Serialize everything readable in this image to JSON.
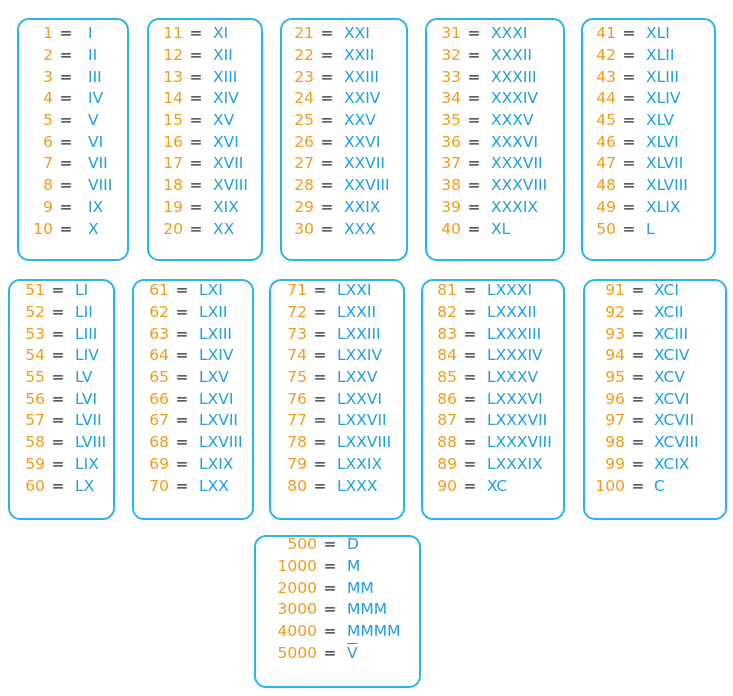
{
  "equals_sign": "=",
  "colors": {
    "number": "#f49a16",
    "numeral": "#1e9fdf",
    "border": "#2ab4ec",
    "equals": "#1c2733"
  },
  "groups": [
    {
      "rows": [
        {
          "n": "1",
          "r": "I"
        },
        {
          "n": "2",
          "r": "II"
        },
        {
          "n": "3",
          "r": "III"
        },
        {
          "n": "4",
          "r": "IV"
        },
        {
          "n": "5",
          "r": "V"
        },
        {
          "n": "6",
          "r": "VI"
        },
        {
          "n": "7",
          "r": "VII"
        },
        {
          "n": "8",
          "r": "VIII"
        },
        {
          "n": "9",
          "r": "IX"
        },
        {
          "n": "10",
          "r": "X"
        }
      ]
    },
    {
      "rows": [
        {
          "n": "11",
          "r": "XI"
        },
        {
          "n": "12",
          "r": "XII"
        },
        {
          "n": "13",
          "r": "XIII"
        },
        {
          "n": "14",
          "r": "XIV"
        },
        {
          "n": "15",
          "r": "XV"
        },
        {
          "n": "16",
          "r": "XVI"
        },
        {
          "n": "17",
          "r": "XVII"
        },
        {
          "n": "18",
          "r": "XVIII"
        },
        {
          "n": "19",
          "r": "XIX"
        },
        {
          "n": "20",
          "r": "XX"
        }
      ]
    },
    {
      "rows": [
        {
          "n": "21",
          "r": "XXI"
        },
        {
          "n": "22",
          "r": "XXII"
        },
        {
          "n": "23",
          "r": "XXIII"
        },
        {
          "n": "24",
          "r": "XXIV"
        },
        {
          "n": "25",
          "r": "XXV"
        },
        {
          "n": "26",
          "r": "XXVI"
        },
        {
          "n": "27",
          "r": "XXVII"
        },
        {
          "n": "28",
          "r": "XXVIII"
        },
        {
          "n": "29",
          "r": "XXIX"
        },
        {
          "n": "30",
          "r": "XXX"
        }
      ]
    },
    {
      "rows": [
        {
          "n": "31",
          "r": "XXXI"
        },
        {
          "n": "32",
          "r": "XXXII"
        },
        {
          "n": "33",
          "r": "XXXIII"
        },
        {
          "n": "34",
          "r": "XXXIV"
        },
        {
          "n": "35",
          "r": "XXXV"
        },
        {
          "n": "36",
          "r": "XXXVI"
        },
        {
          "n": "37",
          "r": "XXXVII"
        },
        {
          "n": "38",
          "r": "XXXVIII"
        },
        {
          "n": "39",
          "r": "XXXIX"
        },
        {
          "n": "40",
          "r": "XL"
        }
      ]
    },
    {
      "rows": [
        {
          "n": "41",
          "r": "XLI"
        },
        {
          "n": "42",
          "r": "XLII"
        },
        {
          "n": "43",
          "r": "XLIII"
        },
        {
          "n": "44",
          "r": "XLIV"
        },
        {
          "n": "45",
          "r": "XLV"
        },
        {
          "n": "46",
          "r": "XLVI"
        },
        {
          "n": "47",
          "r": "XLVII"
        },
        {
          "n": "48",
          "r": "XLVIII"
        },
        {
          "n": "49",
          "r": "XLIX"
        },
        {
          "n": "50",
          "r": "L"
        }
      ]
    },
    {
      "rows": [
        {
          "n": "51",
          "r": "LI"
        },
        {
          "n": "52",
          "r": "LII"
        },
        {
          "n": "53",
          "r": "LIII"
        },
        {
          "n": "54",
          "r": "LIV"
        },
        {
          "n": "55",
          "r": "LV"
        },
        {
          "n": "56",
          "r": "LVI"
        },
        {
          "n": "57",
          "r": "LVII"
        },
        {
          "n": "58",
          "r": "LVIII"
        },
        {
          "n": "59",
          "r": "LIX"
        },
        {
          "n": "60",
          "r": "LX"
        }
      ]
    },
    {
      "rows": [
        {
          "n": "61",
          "r": "LXI"
        },
        {
          "n": "62",
          "r": "LXII"
        },
        {
          "n": "63",
          "r": "LXIII"
        },
        {
          "n": "64",
          "r": "LXIV"
        },
        {
          "n": "65",
          "r": "LXV"
        },
        {
          "n": "66",
          "r": "LXVI"
        },
        {
          "n": "67",
          "r": "LXVII"
        },
        {
          "n": "68",
          "r": "LXVIII"
        },
        {
          "n": "69",
          "r": "LXIX"
        },
        {
          "n": "70",
          "r": "LXX"
        }
      ]
    },
    {
      "rows": [
        {
          "n": "71",
          "r": "LXXI"
        },
        {
          "n": "72",
          "r": "LXXII"
        },
        {
          "n": "73",
          "r": "LXXIII"
        },
        {
          "n": "74",
          "r": "LXXIV"
        },
        {
          "n": "75",
          "r": "LXXV"
        },
        {
          "n": "76",
          "r": "LXXVI"
        },
        {
          "n": "77",
          "r": "LXXVII"
        },
        {
          "n": "78",
          "r": "LXXVIII"
        },
        {
          "n": "79",
          "r": "LXXIX"
        },
        {
          "n": "80",
          "r": "LXXX"
        }
      ]
    },
    {
      "rows": [
        {
          "n": "81",
          "r": "LXXXI"
        },
        {
          "n": "82",
          "r": "LXXXII"
        },
        {
          "n": "83",
          "r": "LXXXIII"
        },
        {
          "n": "84",
          "r": "LXXXIV"
        },
        {
          "n": "85",
          "r": "LXXXV"
        },
        {
          "n": "86",
          "r": "LXXXVI"
        },
        {
          "n": "87",
          "r": "LXXXVII"
        },
        {
          "n": "88",
          "r": "LXXXVIII"
        },
        {
          "n": "89",
          "r": "LXXXIX"
        },
        {
          "n": "90",
          "r": "XC"
        }
      ]
    },
    {
      "rows": [
        {
          "n": "91",
          "r": "XCI"
        },
        {
          "n": "92",
          "r": "XCII"
        },
        {
          "n": "93",
          "r": "XCIII"
        },
        {
          "n": "94",
          "r": "XCIV"
        },
        {
          "n": "95",
          "r": "XCV"
        },
        {
          "n": "96",
          "r": "XCVI"
        },
        {
          "n": "97",
          "r": "XCVII"
        },
        {
          "n": "98",
          "r": "XCVIII"
        },
        {
          "n": "99",
          "r": "XCIX"
        },
        {
          "n": "100",
          "r": "C"
        }
      ]
    },
    {
      "rows": [
        {
          "n": "500",
          "r": "D"
        },
        {
          "n": "1000",
          "r": "M"
        },
        {
          "n": "2000",
          "r": "MM"
        },
        {
          "n": "3000",
          "r": "MMM"
        },
        {
          "n": "4000",
          "r": "MMMM"
        },
        {
          "n": "5000",
          "r": "V",
          "overline": true
        }
      ]
    }
  ]
}
